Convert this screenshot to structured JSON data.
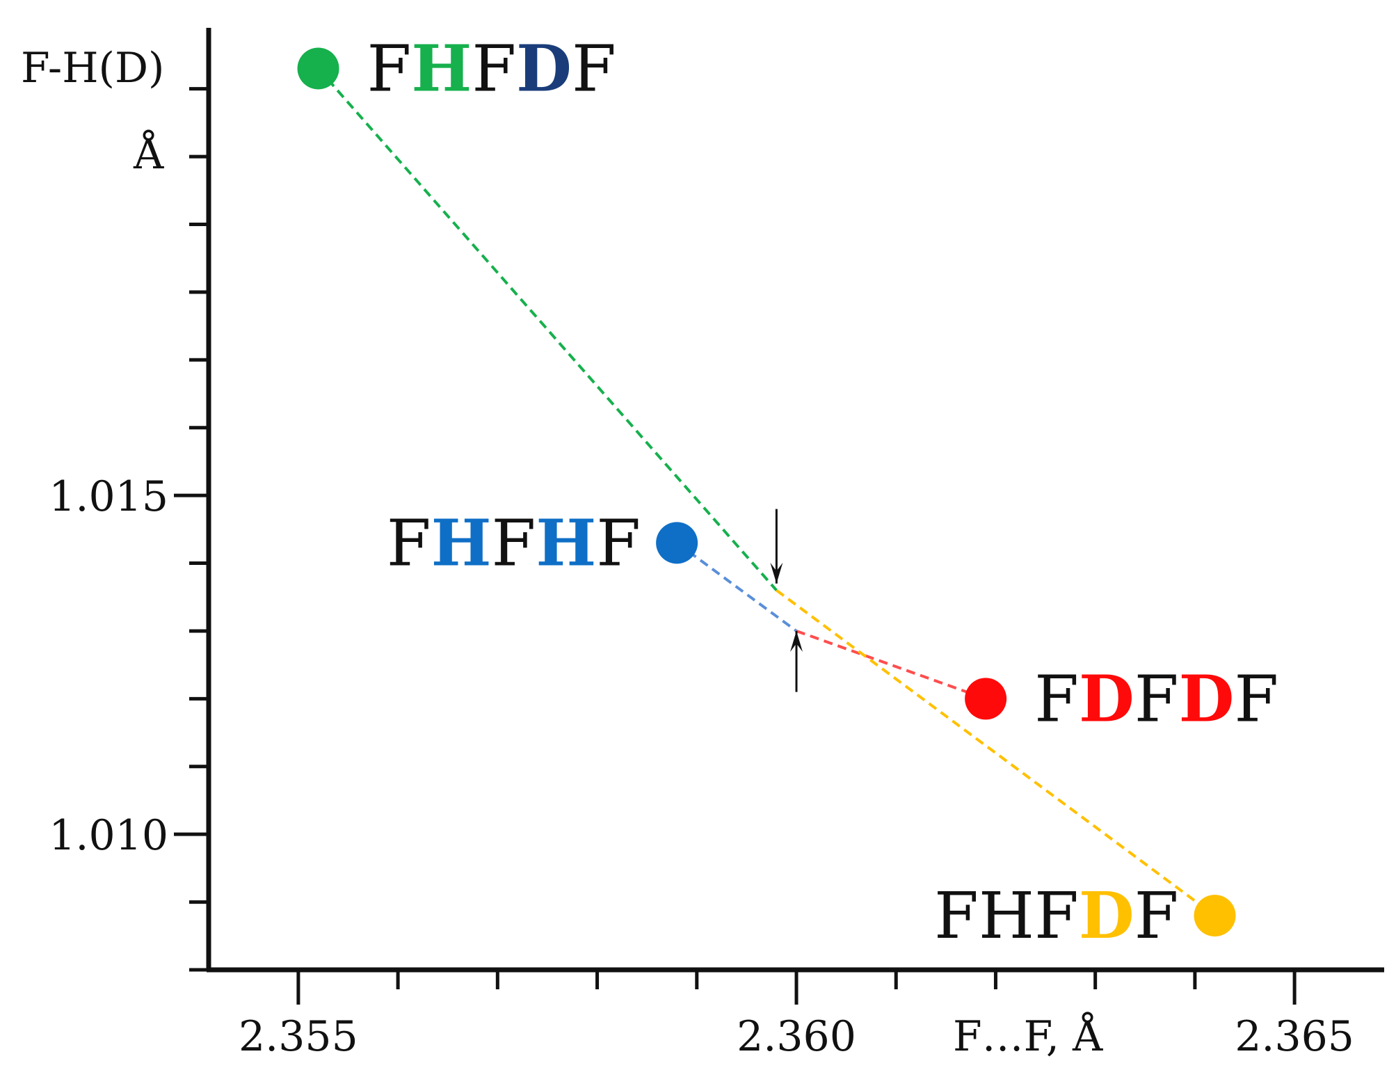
{
  "chart_data": {
    "type": "scatter",
    "title": "",
    "xlabel": "F…F, Å",
    "ylabel_line1": "F-H(D)",
    "ylabel_line2": "Å",
    "xlim": [
      2.3541,
      2.3659
    ],
    "ylim": [
      1.008,
      1.0219
    ],
    "x_ticks": [
      {
        "value": 2.355,
        "label": "2.355"
      },
      {
        "value": 2.36,
        "label": "2.360"
      },
      {
        "value": 2.365,
        "label": "2.365"
      }
    ],
    "y_ticks": [
      {
        "value": 1.01,
        "label": "1.010"
      },
      {
        "value": 1.015,
        "label": "1.015"
      }
    ],
    "x_minor_step": 0.001,
    "y_minor_step": 0.001,
    "grid": false,
    "points": [
      {
        "name": "FHFDF",
        "x": 2.3552,
        "y": 1.0213,
        "color": "#16b04d",
        "label_parts": [
          {
            "text": "F",
            "color": "#111111",
            "bold": false
          },
          {
            "text": "H",
            "color": "#16b04d",
            "bold": true
          },
          {
            "text": "F",
            "color": "#111111",
            "bold": false
          },
          {
            "text": "D",
            "color": "#1a3d7a",
            "bold": true
          },
          {
            "text": "F",
            "color": "#111111",
            "bold": false
          }
        ],
        "label_side": "right"
      },
      {
        "name": "FHFHF",
        "x": 2.3588,
        "y": 1.0143,
        "color": "#0f6fc6",
        "label_parts": [
          {
            "text": "F",
            "color": "#111111",
            "bold": false
          },
          {
            "text": "H",
            "color": "#0f6fc6",
            "bold": true
          },
          {
            "text": "F",
            "color": "#111111",
            "bold": false
          },
          {
            "text": "H",
            "color": "#0f6fc6",
            "bold": true
          },
          {
            "text": "F",
            "color": "#111111",
            "bold": false
          }
        ],
        "label_side": "left"
      },
      {
        "name": "FDFDF",
        "x": 2.3619,
        "y": 1.012,
        "color": "#ff0a0a",
        "label_parts": [
          {
            "text": "F",
            "color": "#111111",
            "bold": false
          },
          {
            "text": "D",
            "color": "#ff0a0a",
            "bold": true
          },
          {
            "text": "F",
            "color": "#111111",
            "bold": false
          },
          {
            "text": "D",
            "color": "#ff0a0a",
            "bold": true
          },
          {
            "text": "F",
            "color": "#111111",
            "bold": false
          }
        ],
        "label_side": "right"
      },
      {
        "name": "FHFDF",
        "x": 2.3642,
        "y": 1.0088,
        "color": "#ffc000",
        "label_parts": [
          {
            "text": "FHF",
            "color": "#111111",
            "bold": false
          },
          {
            "text": "D",
            "color": "#ffc000",
            "bold": true
          },
          {
            "text": "F",
            "color": "#111111",
            "bold": false
          }
        ],
        "label_side": "left"
      }
    ],
    "dashed_lines": [
      {
        "from": [
          2.3552,
          1.0213
        ],
        "to": [
          2.3598,
          1.0136
        ],
        "color": "#16b04d"
      },
      {
        "from": [
          2.3588,
          1.0143
        ],
        "to": [
          2.36,
          1.013
        ],
        "color": "#5a8fd8"
      },
      {
        "from": [
          2.36,
          1.013
        ],
        "to": [
          2.3619,
          1.012
        ],
        "color": "#ff4d4d"
      },
      {
        "from": [
          2.3598,
          1.0136
        ],
        "to": [
          2.3642,
          1.0088
        ],
        "color": "#ffc000"
      }
    ],
    "arrows": [
      {
        "x": 2.3598,
        "from_y": 1.0148,
        "to_y": 1.0137,
        "direction": "down"
      },
      {
        "x": 2.36,
        "from_y": 1.0121,
        "to_y": 1.013,
        "direction": "up"
      }
    ]
  }
}
